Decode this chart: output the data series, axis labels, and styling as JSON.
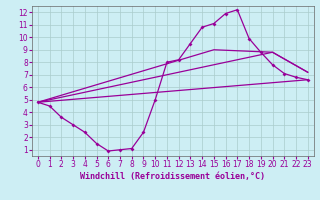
{
  "bg_color": "#cdeef4",
  "line_color": "#990099",
  "grid_color": "#aacccc",
  "spine_color": "#666666",
  "xlim": [
    -0.5,
    23.5
  ],
  "ylim": [
    0.5,
    12.5
  ],
  "xticks": [
    0,
    1,
    2,
    3,
    4,
    5,
    6,
    7,
    8,
    9,
    10,
    11,
    12,
    13,
    14,
    15,
    16,
    17,
    18,
    19,
    20,
    21,
    22,
    23
  ],
  "yticks": [
    1,
    2,
    3,
    4,
    5,
    6,
    7,
    8,
    9,
    10,
    11,
    12
  ],
  "xlabel": "Windchill (Refroidissement éolien,°C)",
  "line1_x": [
    0,
    1,
    2,
    3,
    4,
    5,
    6,
    7,
    8,
    9,
    10,
    11,
    12,
    13,
    14,
    15,
    16,
    17,
    18,
    19,
    20,
    21,
    22,
    23
  ],
  "line1_y": [
    4.8,
    4.5,
    3.6,
    3.0,
    2.4,
    1.5,
    0.9,
    1.0,
    1.1,
    2.4,
    5.0,
    8.0,
    8.2,
    9.5,
    10.8,
    11.1,
    11.9,
    12.2,
    9.9,
    8.8,
    7.8,
    7.1,
    6.8,
    6.6
  ],
  "line2_x": [
    0,
    23
  ],
  "line2_y": [
    4.8,
    6.6
  ],
  "line3_x": [
    0,
    15,
    20,
    23
  ],
  "line3_y": [
    4.8,
    7.8,
    8.8,
    7.2
  ],
  "line4_x": [
    0,
    15,
    20,
    23
  ],
  "line4_y": [
    4.8,
    9.0,
    8.8,
    7.2
  ],
  "tick_fontsize": 5.5,
  "label_fontsize": 6.0
}
